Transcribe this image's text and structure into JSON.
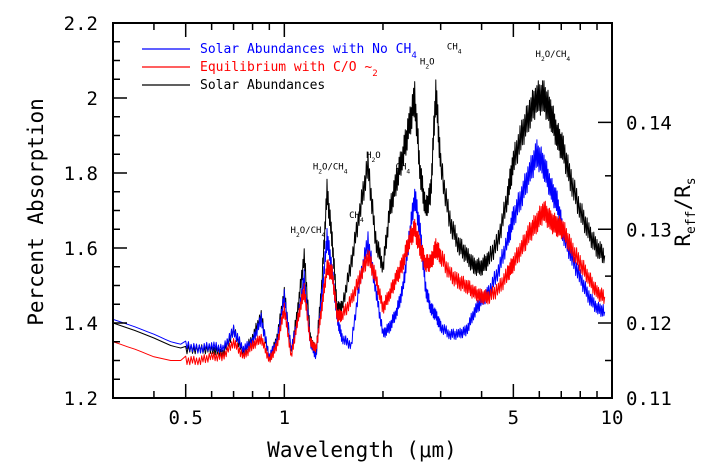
{
  "chart_data": {
    "type": "line",
    "title": "",
    "xlabel": "Wavelength (μm)",
    "ylabel": "Percent Absorption",
    "y2label": "R_eff/R_s",
    "x_scale": "log",
    "xlim": [
      0.3,
      10
    ],
    "ylim": [
      1.2,
      2.2
    ],
    "x_ticks": [
      0.5,
      1,
      5,
      10
    ],
    "x_tick_labels": [
      "0.5",
      "1",
      "5",
      "10"
    ],
    "y_ticks": [
      1.2,
      1.4,
      1.6,
      1.8,
      2,
      2.2
    ],
    "y_tick_labels": [
      "1.2",
      "1.4",
      "1.6",
      "1.8",
      "2",
      "2.2"
    ],
    "y2_ticks": [
      0.11,
      0.12,
      0.13,
      0.14
    ],
    "y2_tick_labels": [
      "0.11",
      "0.12",
      "0.13",
      "0.14"
    ],
    "y2_positions_in_y_units": [
      1.2,
      1.4,
      1.65,
      1.935
    ],
    "legend_placement": "top-left",
    "series": [
      {
        "name": "Solar Abundances with No CH4",
        "color": "#0000ff",
        "x": [
          0.3,
          0.35,
          0.4,
          0.45,
          0.5,
          0.55,
          0.6,
          0.65,
          0.7,
          0.75,
          0.8,
          0.85,
          0.9,
          0.95,
          1.0,
          1.05,
          1.1,
          1.15,
          1.2,
          1.25,
          1.3,
          1.35,
          1.4,
          1.45,
          1.5,
          1.6,
          1.7,
          1.8,
          1.9,
          2.0,
          2.1,
          2.2,
          2.3,
          2.4,
          2.5,
          2.6,
          2.7,
          2.8,
          2.9,
          3.0,
          3.2,
          3.4,
          3.6,
          3.8,
          4.0,
          4.2,
          4.5,
          4.8,
          5.0,
          5.3,
          5.6,
          5.9,
          6.2,
          6.5,
          6.8,
          7.1,
          7.5,
          8.0,
          8.5,
          9.0,
          9.5
        ],
        "y": [
          1.41,
          1.39,
          1.37,
          1.35,
          1.34,
          1.33,
          1.34,
          1.33,
          1.38,
          1.33,
          1.35,
          1.41,
          1.31,
          1.35,
          1.47,
          1.33,
          1.41,
          1.52,
          1.35,
          1.31,
          1.47,
          1.63,
          1.54,
          1.41,
          1.36,
          1.34,
          1.51,
          1.62,
          1.49,
          1.37,
          1.39,
          1.43,
          1.49,
          1.62,
          1.74,
          1.64,
          1.49,
          1.44,
          1.42,
          1.39,
          1.37,
          1.37,
          1.38,
          1.43,
          1.46,
          1.48,
          1.54,
          1.62,
          1.68,
          1.74,
          1.8,
          1.85,
          1.82,
          1.76,
          1.72,
          1.64,
          1.58,
          1.52,
          1.47,
          1.44,
          1.43
        ]
      },
      {
        "name": "Equilibrium with C/O ~2",
        "color": "#ff0000",
        "x": [
          0.3,
          0.35,
          0.4,
          0.45,
          0.5,
          0.55,
          0.6,
          0.65,
          0.7,
          0.75,
          0.8,
          0.85,
          0.9,
          0.95,
          1.0,
          1.05,
          1.1,
          1.15,
          1.2,
          1.25,
          1.3,
          1.35,
          1.4,
          1.45,
          1.5,
          1.6,
          1.7,
          1.8,
          1.9,
          2.0,
          2.1,
          2.2,
          2.3,
          2.4,
          2.5,
          2.6,
          2.7,
          2.8,
          2.9,
          3.0,
          3.2,
          3.4,
          3.6,
          3.8,
          4.0,
          4.2,
          4.5,
          4.8,
          5.0,
          5.3,
          5.6,
          5.9,
          6.2,
          6.5,
          6.8,
          7.1,
          7.5,
          8.0,
          8.5,
          9.0,
          9.5
        ],
        "y": [
          1.35,
          1.33,
          1.31,
          1.3,
          1.3,
          1.3,
          1.31,
          1.31,
          1.35,
          1.31,
          1.34,
          1.36,
          1.3,
          1.34,
          1.44,
          1.31,
          1.41,
          1.49,
          1.35,
          1.33,
          1.44,
          1.55,
          1.53,
          1.42,
          1.42,
          1.46,
          1.52,
          1.58,
          1.52,
          1.44,
          1.48,
          1.52,
          1.56,
          1.62,
          1.65,
          1.6,
          1.56,
          1.56,
          1.6,
          1.58,
          1.53,
          1.51,
          1.5,
          1.48,
          1.47,
          1.47,
          1.49,
          1.53,
          1.56,
          1.6,
          1.64,
          1.67,
          1.7,
          1.67,
          1.66,
          1.65,
          1.6,
          1.56,
          1.52,
          1.48,
          1.47
        ]
      },
      {
        "name": "Solar Abundances",
        "color": "#000000",
        "x": [
          0.3,
          0.35,
          0.4,
          0.45,
          0.5,
          0.55,
          0.6,
          0.65,
          0.7,
          0.75,
          0.8,
          0.85,
          0.9,
          0.95,
          1.0,
          1.05,
          1.1,
          1.15,
          1.2,
          1.25,
          1.3,
          1.35,
          1.4,
          1.45,
          1.5,
          1.6,
          1.7,
          1.8,
          1.9,
          2.0,
          2.1,
          2.2,
          2.3,
          2.4,
          2.5,
          2.6,
          2.7,
          2.8,
          2.9,
          3.0,
          3.2,
          3.4,
          3.6,
          3.8,
          4.0,
          4.2,
          4.5,
          4.8,
          5.0,
          5.3,
          5.6,
          5.9,
          6.2,
          6.5,
          6.8,
          7.1,
          7.5,
          8.0,
          8.5,
          9.0,
          9.5
        ],
        "y": [
          1.4,
          1.38,
          1.36,
          1.34,
          1.33,
          1.33,
          1.33,
          1.32,
          1.38,
          1.32,
          1.36,
          1.42,
          1.3,
          1.36,
          1.48,
          1.32,
          1.44,
          1.58,
          1.36,
          1.32,
          1.5,
          1.75,
          1.62,
          1.44,
          1.44,
          1.56,
          1.7,
          1.82,
          1.62,
          1.55,
          1.7,
          1.78,
          1.85,
          1.92,
          2.0,
          1.8,
          1.7,
          1.75,
          2.02,
          1.82,
          1.67,
          1.61,
          1.58,
          1.55,
          1.55,
          1.57,
          1.62,
          1.74,
          1.83,
          1.9,
          1.96,
          2.0,
          2.0,
          1.96,
          1.9,
          1.86,
          1.78,
          1.7,
          1.64,
          1.6,
          1.58
        ]
      }
    ],
    "annotations": [
      {
        "text": "H2O/CH4",
        "x": 1.18,
        "y": 1.64
      },
      {
        "text": "H2O/CH4",
        "x": 1.38,
        "y": 1.81
      },
      {
        "text": "CH4",
        "x": 1.66,
        "y": 1.68
      },
      {
        "text": "H2O",
        "x": 1.87,
        "y": 1.84
      },
      {
        "text": "CH4",
        "x": 2.3,
        "y": 1.81
      },
      {
        "text": "H2O",
        "x": 2.73,
        "y": 2.09
      },
      {
        "text": "CH4",
        "x": 3.3,
        "y": 2.13
      },
      {
        "text": "H2O/CH4",
        "x": 6.6,
        "y": 2.11
      }
    ]
  }
}
